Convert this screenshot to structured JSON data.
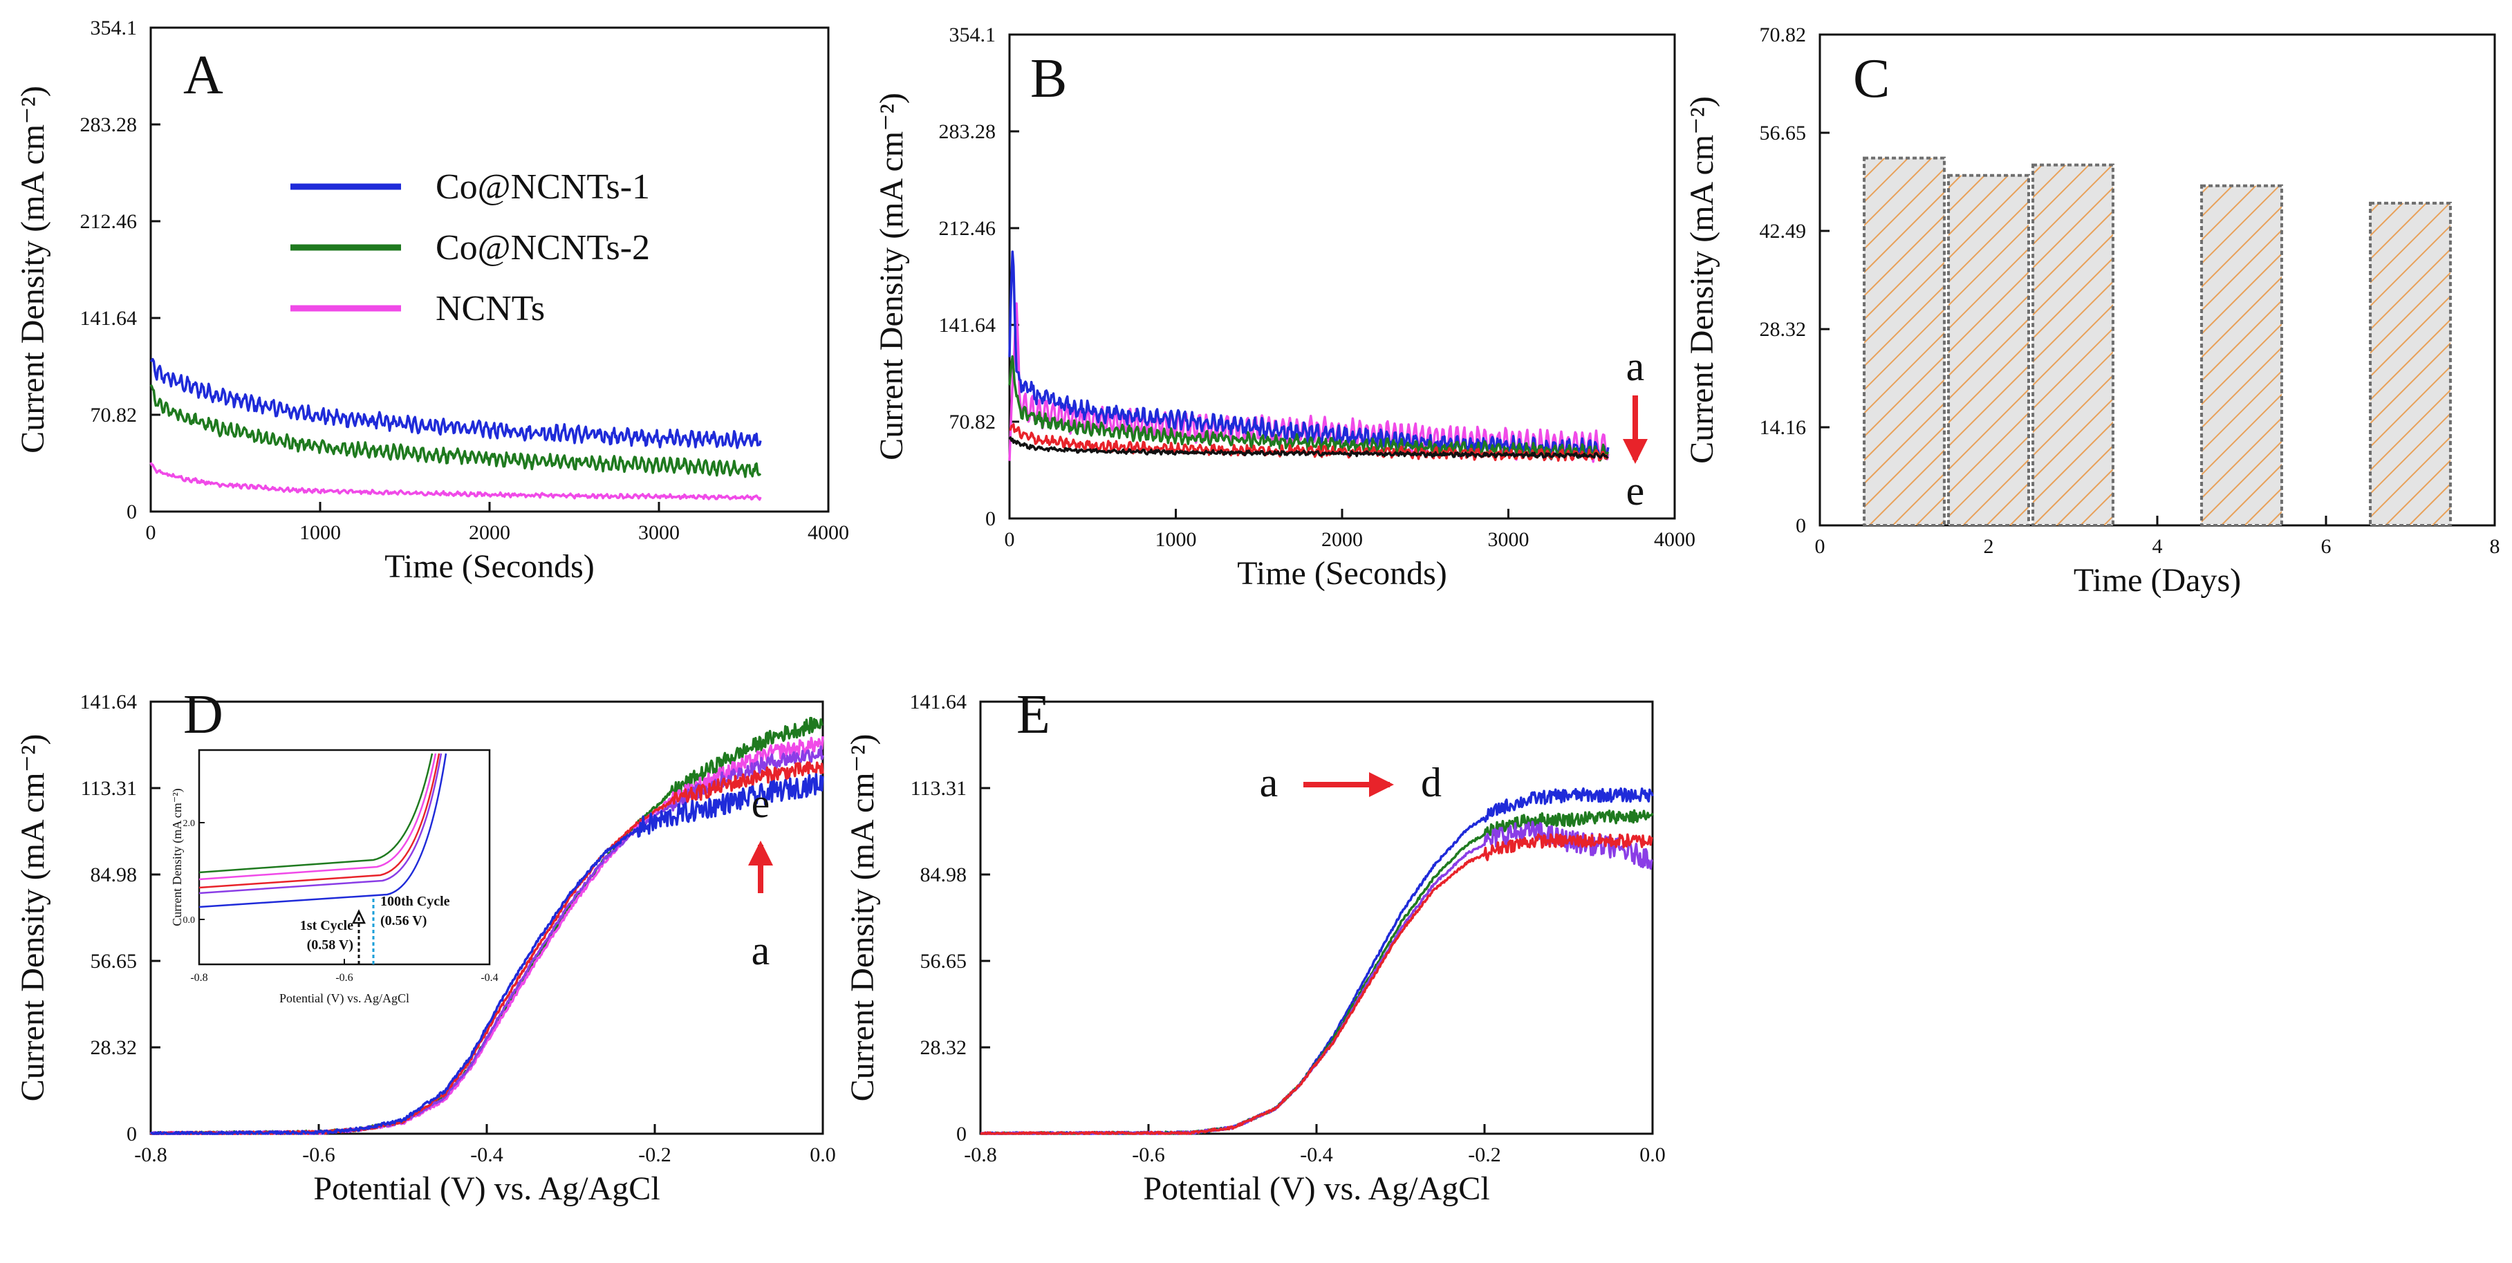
{
  "colors": {
    "blue": "#1f2bd9",
    "green": "#1f7a1f",
    "pink": "#f04ae8",
    "red": "#e8232a",
    "black": "#111111",
    "purple": "#8a3de6",
    "arrow": "#e8232a",
    "cyan": "#1a9fd9",
    "bar_fill": "#e4e4e4",
    "bar_hatch": "#e8a15a",
    "bar_edge": "#6e6e6e"
  },
  "chart_data": [
    {
      "id": "A",
      "type": "line",
      "panel_label": "A",
      "xlabel": "Time (Seconds)",
      "ylabel": "Current Density (mA cm⁻²)",
      "xlim": [
        0,
        4000
      ],
      "ylim": [
        0,
        354.1
      ],
      "xticks": [
        0,
        1000,
        2000,
        3000,
        4000
      ],
      "xtick_labels": [
        "0",
        "1000",
        "2000",
        "3000",
        "4000"
      ],
      "yticks": [
        0,
        70.82,
        141.64,
        212.46,
        283.28,
        354.1
      ],
      "ytick_labels": [
        "0",
        "70.82",
        "141.64",
        "212.46",
        "283.28",
        "354.1"
      ],
      "legend": {
        "position": "upper-center",
        "entries": [
          {
            "label": "Co@NCNTs-1",
            "color": "blue"
          },
          {
            "label": "Co@NCNTs-2",
            "color": "green"
          },
          {
            "label": "NCNTs",
            "color": "pink"
          }
        ]
      },
      "series": [
        {
          "name": "Co@NCNTs-1",
          "color": "blue",
          "x": [
            0,
            30,
            100,
            200,
            400,
            600,
            800,
            1000,
            1250,
            1500,
            1750,
            2000,
            2250,
            2500,
            2750,
            3000,
            3250,
            3500,
            3600
          ],
          "y": [
            110,
            102,
            98,
            93,
            85,
            79,
            74,
            70,
            67,
            64,
            62,
            60,
            58,
            57,
            55,
            54,
            53,
            52,
            51
          ],
          "noise": 3,
          "zigzag": 4
        },
        {
          "name": "Co@NCNTs-2",
          "color": "green",
          "x": [
            0,
            30,
            100,
            200,
            400,
            600,
            800,
            1000,
            1250,
            1500,
            1750,
            2000,
            2250,
            2500,
            2750,
            3000,
            3250,
            3500,
            3600
          ],
          "y": [
            92,
            80,
            74,
            69,
            61,
            56,
            51,
            48,
            45,
            43,
            41,
            39,
            37,
            36,
            35,
            34,
            33,
            31,
            30
          ],
          "noise": 2.5,
          "zigzag": 3.5
        },
        {
          "name": "NCNTs",
          "color": "pink",
          "x": [
            0,
            30,
            100,
            200,
            400,
            600,
            800,
            1000,
            1500,
            2000,
            2500,
            3000,
            3500,
            3600
          ],
          "y": [
            35,
            30,
            27,
            24,
            20,
            18,
            16,
            15,
            13.5,
            12.5,
            11.5,
            11,
            10.5,
            10
          ],
          "noise": 1,
          "zigzag": 0.8
        }
      ]
    },
    {
      "id": "B",
      "type": "line",
      "panel_label": "B",
      "xlabel": "Time (Seconds)",
      "ylabel": "Current Density (mA cm⁻²)",
      "xlim": [
        0,
        4000
      ],
      "ylim": [
        0,
        354.1
      ],
      "xticks": [
        0,
        1000,
        2000,
        3000,
        4000
      ],
      "xtick_labels": [
        "0",
        "1000",
        "2000",
        "3000",
        "4000"
      ],
      "yticks": [
        0,
        70.82,
        141.64,
        212.46,
        283.28,
        354.1
      ],
      "ytick_labels": [
        "0",
        "70.82",
        "141.64",
        "212.46",
        "283.28",
        "354.1"
      ],
      "annotation": {
        "from": "a",
        "to": "e",
        "direction": "down"
      },
      "series": [
        {
          "name": "pink",
          "color": "pink",
          "x": [
            0,
            20,
            40,
            60,
            100,
            200,
            400,
            700,
            1000,
            1500,
            2000,
            2500,
            3000,
            3600
          ],
          "y": [
            40,
            100,
            165,
            85,
            80,
            77,
            73,
            70,
            68,
            65,
            62,
            58,
            55,
            52
          ],
          "noise": 3,
          "zigzag": 9
        },
        {
          "name": "blue",
          "color": "blue",
          "x": [
            0,
            20,
            40,
            60,
            100,
            200,
            400,
            700,
            1000,
            1500,
            2000,
            2500,
            3000,
            3600
          ],
          "y": [
            120,
            205,
            110,
            100,
            95,
            88,
            80,
            75,
            72,
            66,
            60,
            56,
            53,
            50
          ],
          "noise": 4,
          "zigzag": 4
        },
        {
          "name": "green",
          "color": "green",
          "x": [
            0,
            20,
            40,
            60,
            100,
            200,
            400,
            700,
            1000,
            1500,
            2000,
            2500,
            3000,
            3600
          ],
          "y": [
            95,
            120,
            90,
            80,
            76,
            72,
            67,
            63,
            60,
            57,
            54,
            52,
            50,
            48
          ],
          "noise": 3,
          "zigzag": 3
        },
        {
          "name": "red",
          "color": "red",
          "x": [
            0,
            20,
            60,
            100,
            200,
            400,
            700,
            1000,
            1500,
            2000,
            2500,
            3000,
            3600
          ],
          "y": [
            65,
            68,
            62,
            60,
            57,
            54,
            52,
            51,
            50,
            49,
            48,
            47,
            46
          ],
          "noise": 2.5,
          "zigzag": 2
        },
        {
          "name": "black",
          "color": "black",
          "x": [
            0,
            20,
            60,
            100,
            200,
            400,
            700,
            1000,
            1500,
            2000,
            2500,
            3000,
            3600
          ],
          "y": [
            58,
            57,
            55,
            53,
            51,
            50,
            49,
            48.5,
            48,
            47.5,
            47,
            46.5,
            46
          ],
          "noise": 1.2,
          "zigzag": 0.6
        }
      ]
    },
    {
      "id": "C",
      "type": "bar",
      "panel_label": "C",
      "xlabel": "Time (Days)",
      "ylabel": "Current Density (mA cm⁻²)",
      "xlim": [
        0,
        8
      ],
      "ylim": [
        0,
        70.82
      ],
      "xticks": [
        0,
        2,
        4,
        6,
        8
      ],
      "xtick_labels": [
        "0",
        "2",
        "4",
        "6",
        "8"
      ],
      "yticks": [
        0,
        14.16,
        28.32,
        42.49,
        56.65,
        70.82
      ],
      "ytick_labels": [
        "0",
        "14.16",
        "28.32",
        "42.49",
        "56.65",
        "70.82"
      ],
      "bar_width_days": 0.95,
      "x": [
        1,
        2,
        3,
        5,
        7
      ],
      "values": [
        53,
        50.5,
        52,
        49,
        46.5
      ]
    },
    {
      "id": "D",
      "type": "line",
      "panel_label": "D",
      "xlabel": "Potential (V) vs. Ag/AgCl",
      "ylabel": "Current Density (mA cm⁻²)",
      "xlim": [
        -0.8,
        0.0
      ],
      "ylim": [
        0,
        141.64
      ],
      "xticks": [
        -0.8,
        -0.6,
        -0.4,
        -0.2,
        0.0
      ],
      "xtick_labels": [
        "-0.8",
        "-0.6",
        "-0.4",
        "-0.2",
        "0.0"
      ],
      "yticks": [
        0,
        28.32,
        56.65,
        84.98,
        113.31,
        141.64
      ],
      "ytick_labels": [
        "0",
        "28.32",
        "56.65",
        "84.98",
        "113.31",
        "141.64"
      ],
      "annotation": {
        "from": "a",
        "to": "e",
        "direction": "up"
      },
      "series": [
        {
          "name": "green",
          "color": "green",
          "x": [
            -0.8,
            -0.6,
            -0.55,
            -0.5,
            -0.45,
            -0.42,
            -0.38,
            -0.34,
            -0.3,
            -0.26,
            -0.22,
            -0.18,
            -0.12,
            -0.06,
            0.0
          ],
          "y": [
            0,
            0.5,
            1.5,
            4,
            12,
            22,
            40,
            58,
            75,
            90,
            102,
            112,
            122,
            130,
            135
          ],
          "noise": 0.5,
          "noise_after": -0.18,
          "noise_big": 2.5
        },
        {
          "name": "magenta",
          "color": "pink",
          "x": [
            -0.8,
            -0.6,
            -0.55,
            -0.5,
            -0.45,
            -0.42,
            -0.38,
            -0.34,
            -0.3,
            -0.26,
            -0.22,
            -0.18,
            -0.12,
            -0.06,
            0.0
          ],
          "y": [
            0,
            0.4,
            1.3,
            3.5,
            11,
            21,
            39,
            57,
            74,
            89,
            101,
            110,
            118,
            125,
            128
          ],
          "noise": 0.5,
          "noise_after": -0.18,
          "noise_big": 2.5
        },
        {
          "name": "purple",
          "color": "purple",
          "x": [
            -0.8,
            -0.6,
            -0.55,
            -0.5,
            -0.45,
            -0.42,
            -0.38,
            -0.34,
            -0.3,
            -0.26,
            -0.22,
            -0.18,
            -0.12,
            -0.06,
            0.0
          ],
          "y": [
            0,
            0.4,
            1.4,
            3.8,
            12,
            22,
            41,
            59,
            76,
            90,
            100,
            108,
            116,
            122,
            125
          ],
          "noise": 0.5,
          "noise_after": -0.18,
          "noise_big": 2.5
        },
        {
          "name": "red",
          "color": "red",
          "x": [
            -0.8,
            -0.6,
            -0.55,
            -0.5,
            -0.45,
            -0.42,
            -0.38,
            -0.34,
            -0.3,
            -0.26,
            -0.22,
            -0.18,
            -0.12,
            -0.06,
            0.0
          ],
          "y": [
            0,
            0.4,
            1.4,
            4,
            13,
            24,
            43,
            61,
            78,
            92,
            102,
            109,
            114,
            118,
            120
          ],
          "noise": 0.5,
          "noise_after": -0.18,
          "noise_big": 2.5
        },
        {
          "name": "blue",
          "color": "blue",
          "x": [
            -0.8,
            -0.6,
            -0.55,
            -0.5,
            -0.45,
            -0.42,
            -0.38,
            -0.34,
            -0.3,
            -0.26,
            -0.22,
            -0.18,
            -0.12,
            -0.06,
            0.0
          ],
          "y": [
            0,
            0.4,
            1.6,
            4.5,
            14,
            25,
            45,
            63,
            79,
            92,
            100,
            104,
            108,
            112,
            115
          ],
          "noise": 0.5,
          "noise_after": -0.22,
          "noise_big": 3.5
        }
      ],
      "inset": {
        "xlabel": "Potential (V) vs. Ag/AgCl",
        "ylabel": "Current Density (mA cm⁻²)",
        "xlim": [
          -0.8,
          -0.4
        ],
        "xticks": [
          -0.8,
          -0.6,
          -0.4
        ],
        "xtick_labels": [
          "-0.8",
          "-0.6",
          "-0.4"
        ],
        "yticks": [
          0.0,
          2.0
        ],
        "ytick_labels": [
          "0.0",
          "2.0"
        ],
        "marker_1": {
          "label": "1st Cycle",
          "value": "(0.58 V)",
          "x": -0.58
        },
        "marker_2": {
          "label": "100th Cycle",
          "value": "(0.56 V)",
          "x": -0.56
        }
      }
    },
    {
      "id": "E",
      "type": "line",
      "panel_label": "E",
      "xlabel": "Potential (V) vs. Ag/AgCl",
      "ylabel": "Current Density (mA cm⁻²)",
      "xlim": [
        -0.8,
        0.0
      ],
      "ylim": [
        0,
        141.64
      ],
      "xticks": [
        -0.8,
        -0.6,
        -0.4,
        -0.2,
        0.0
      ],
      "xtick_labels": [
        "-0.8",
        "-0.6",
        "-0.4",
        "-0.2",
        "0.0"
      ],
      "yticks": [
        0,
        28.32,
        56.65,
        84.98,
        113.31,
        141.64
      ],
      "ytick_labels": [
        "0",
        "28.32",
        "56.65",
        "84.98",
        "113.31",
        "141.64"
      ],
      "annotation": {
        "from": "a",
        "to": "d",
        "direction": "right"
      },
      "series": [
        {
          "name": "blue",
          "color": "blue",
          "x": [
            -0.8,
            -0.55,
            -0.5,
            -0.45,
            -0.42,
            -0.38,
            -0.34,
            -0.3,
            -0.26,
            -0.22,
            -0.18,
            -0.14,
            -0.1,
            -0.05,
            0.0
          ],
          "y": [
            0,
            0.3,
            2,
            8,
            16,
            32,
            52,
            72,
            88,
            100,
            107,
            110,
            111,
            111,
            111
          ],
          "noise": 0.4,
          "noise_after": -0.2,
          "noise_big": 2.2
        },
        {
          "name": "green",
          "color": "green",
          "x": [
            -0.8,
            -0.55,
            -0.5,
            -0.45,
            -0.42,
            -0.38,
            -0.34,
            -0.3,
            -0.26,
            -0.22,
            -0.18,
            -0.14,
            -0.1,
            -0.05,
            0.0
          ],
          "y": [
            0,
            0.3,
            2,
            8,
            16,
            31,
            50,
            69,
            84,
            95,
            101,
            103,
            103,
            104,
            104
          ],
          "noise": 0.4,
          "noise_after": -0.2,
          "noise_big": 2.2
        },
        {
          "name": "purple",
          "color": "purple",
          "x": [
            -0.8,
            -0.55,
            -0.5,
            -0.45,
            -0.42,
            -0.38,
            -0.34,
            -0.3,
            -0.26,
            -0.22,
            -0.18,
            -0.14,
            -0.1,
            -0.05,
            0.0
          ],
          "y": [
            0,
            0.3,
            2,
            8,
            16,
            30,
            49,
            67,
            82,
            92,
            98,
            99,
            96,
            94,
            90
          ],
          "noise": 0.4,
          "noise_after": -0.2,
          "noise_big": 3.5
        },
        {
          "name": "red",
          "color": "red",
          "x": [
            -0.8,
            -0.55,
            -0.5,
            -0.45,
            -0.42,
            -0.38,
            -0.34,
            -0.3,
            -0.26,
            -0.22,
            -0.18,
            -0.14,
            -0.1,
            -0.05,
            0.0
          ],
          "y": [
            0,
            0.3,
            2,
            8,
            16,
            30,
            48,
            66,
            80,
            89,
            94,
            96,
            96,
            96,
            96
          ],
          "noise": 0.4,
          "noise_after": -0.2,
          "noise_big": 2.2
        }
      ]
    }
  ]
}
